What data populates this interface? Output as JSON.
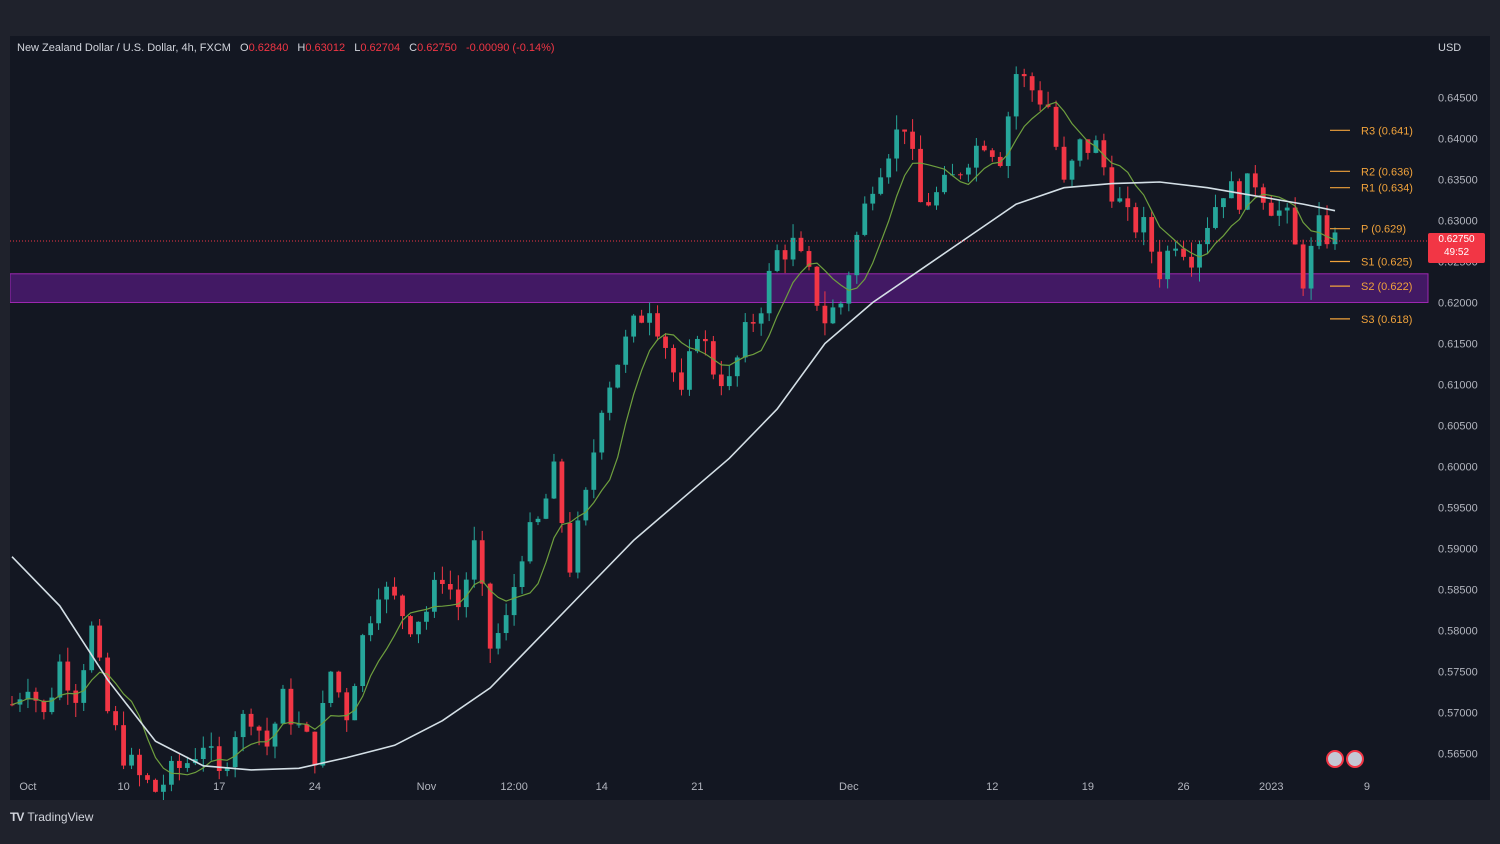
{
  "header": {
    "symbol": "New Zealand Dollar / U.S. Dollar, 4h, FXCM",
    "open_label": "O",
    "open": "0.62840",
    "high_label": "H",
    "high": "0.63012",
    "low_label": "L",
    "low": "0.62704",
    "close_label": "C",
    "close": "0.62750",
    "change": "-0.00090 (-0.14%)"
  },
  "currency": "USD",
  "price_tag": {
    "price": "0.62750",
    "countdown": "49:52"
  },
  "branding": {
    "name": "TradingView",
    "mark": "TV"
  },
  "colors": {
    "up": "#26a69a",
    "down": "#f23645",
    "ma_long": "#d4dfe6",
    "ma_short": "#6e9f3e",
    "zone": "#6a1b9a",
    "pivot": "#f0a23b"
  },
  "chart_data": {
    "type": "candlestick",
    "y_axis": {
      "range": [
        0.5625,
        0.6525
      ],
      "ticks": [
        "0.56500",
        "0.57000",
        "0.57500",
        "0.58000",
        "0.58500",
        "0.59000",
        "0.59500",
        "0.60000",
        "0.60500",
        "0.61000",
        "0.61500",
        "0.62000",
        "0.62500",
        "0.63000",
        "0.63500",
        "0.64000",
        "0.64500"
      ]
    },
    "x_axis": {
      "ticks": [
        {
          "label": "Oct",
          "i": 2
        },
        {
          "label": "10",
          "i": 14
        },
        {
          "label": "17",
          "i": 26
        },
        {
          "label": "24",
          "i": 38
        },
        {
          "label": "Nov",
          "i": 52
        },
        {
          "label": "12:00",
          "i": 63
        },
        {
          "label": "14",
          "i": 74
        },
        {
          "label": "21",
          "i": 86
        },
        {
          "label": "Dec",
          "i": 105
        },
        {
          "label": "12",
          "i": 123
        },
        {
          "label": "19",
          "i": 135
        },
        {
          "label": "26",
          "i": 147
        },
        {
          "label": "2023",
          "i": 158
        },
        {
          "label": "9",
          "i": 170
        }
      ]
    },
    "pivots": [
      {
        "label": "R3 (0.641)",
        "value": 0.641
      },
      {
        "label": "R2 (0.636)",
        "value": 0.636
      },
      {
        "label": "R1 (0.634)",
        "value": 0.634
      },
      {
        "label": "P (0.629)",
        "value": 0.629
      },
      {
        "label": "S1 (0.625)",
        "value": 0.625
      },
      {
        "label": "S2 (0.622)",
        "value": 0.622
      },
      {
        "label": "S3 (0.618)",
        "value": 0.618
      }
    ],
    "support_zone": [
      0.62,
      0.6235
    ],
    "last_price": 0.6275,
    "close_path": [
      [
        0,
        0.571
      ],
      [
        2,
        0.574
      ],
      [
        4,
        0.5695
      ],
      [
        6,
        0.576
      ],
      [
        8,
        0.5725
      ],
      [
        10,
        0.58
      ],
      [
        12,
        0.57
      ],
      [
        14,
        0.565
      ],
      [
        16,
        0.562
      ],
      [
        18,
        0.5605
      ],
      [
        20,
        0.5625
      ],
      [
        22,
        0.564
      ],
      [
        24,
        0.5665
      ],
      [
        26,
        0.562
      ],
      [
        28,
        0.568
      ],
      [
        30,
        0.57
      ],
      [
        32,
        0.566
      ],
      [
        34,
        0.5715
      ],
      [
        36,
        0.568
      ],
      [
        38,
        0.565
      ],
      [
        40,
        0.575
      ],
      [
        42,
        0.57
      ],
      [
        44,
        0.579
      ],
      [
        46,
        0.5855
      ],
      [
        48,
        0.5835
      ],
      [
        50,
        0.581
      ],
      [
        52,
        0.5825
      ],
      [
        54,
        0.587
      ],
      [
        56,
        0.583
      ],
      [
        58,
        0.59
      ],
      [
        60,
        0.578
      ],
      [
        62,
        0.581
      ],
      [
        64,
        0.59
      ],
      [
        66,
        0.593
      ],
      [
        68,
        0.599
      ],
      [
        70,
        0.588
      ],
      [
        72,
        0.596
      ],
      [
        74,
        0.608
      ],
      [
        76,
        0.613
      ],
      [
        78,
        0.617
      ],
      [
        80,
        0.62
      ],
      [
        82,
        0.615
      ],
      [
        84,
        0.608
      ],
      [
        86,
        0.617
      ],
      [
        88,
        0.612
      ],
      [
        90,
        0.61
      ],
      [
        92,
        0.616
      ],
      [
        94,
        0.62
      ],
      [
        96,
        0.626
      ],
      [
        98,
        0.627
      ],
      [
        100,
        0.623
      ],
      [
        102,
        0.618
      ],
      [
        104,
        0.62
      ],
      [
        106,
        0.628
      ],
      [
        108,
        0.635
      ],
      [
        110,
        0.639
      ],
      [
        112,
        0.642
      ],
      [
        114,
        0.632
      ],
      [
        116,
        0.633
      ],
      [
        118,
        0.635
      ],
      [
        120,
        0.638
      ],
      [
        122,
        0.64
      ],
      [
        124,
        0.638
      ],
      [
        126,
        0.648
      ],
      [
        128,
        0.646
      ],
      [
        130,
        0.644
      ],
      [
        132,
        0.634
      ],
      [
        134,
        0.639
      ],
      [
        136,
        0.639
      ],
      [
        138,
        0.634
      ],
      [
        140,
        0.63
      ],
      [
        142,
        0.629
      ],
      [
        144,
        0.624
      ],
      [
        146,
        0.628
      ],
      [
        148,
        0.626
      ],
      [
        150,
        0.63
      ],
      [
        152,
        0.634
      ],
      [
        154,
        0.633
      ],
      [
        156,
        0.635
      ],
      [
        158,
        0.632
      ],
      [
        160,
        0.63
      ],
      [
        162,
        0.623
      ],
      [
        164,
        0.629
      ],
      [
        166,
        0.6275
      ]
    ],
    "ma_long_path": [
      [
        0,
        0.589
      ],
      [
        6,
        0.583
      ],
      [
        12,
        0.574
      ],
      [
        18,
        0.5665
      ],
      [
        24,
        0.5635
      ],
      [
        30,
        0.563
      ],
      [
        36,
        0.5632
      ],
      [
        42,
        0.5645
      ],
      [
        48,
        0.566
      ],
      [
        54,
        0.569
      ],
      [
        60,
        0.573
      ],
      [
        66,
        0.579
      ],
      [
        72,
        0.585
      ],
      [
        78,
        0.591
      ],
      [
        84,
        0.596
      ],
      [
        90,
        0.601
      ],
      [
        96,
        0.607
      ],
      [
        102,
        0.615
      ],
      [
        108,
        0.62
      ],
      [
        114,
        0.624
      ],
      [
        120,
        0.628
      ],
      [
        126,
        0.632
      ],
      [
        132,
        0.634
      ],
      [
        138,
        0.6345
      ],
      [
        144,
        0.6347
      ],
      [
        150,
        0.634
      ],
      [
        156,
        0.633
      ],
      [
        162,
        0.632
      ],
      [
        166,
        0.6312
      ]
    ],
    "candle_count": 167
  }
}
